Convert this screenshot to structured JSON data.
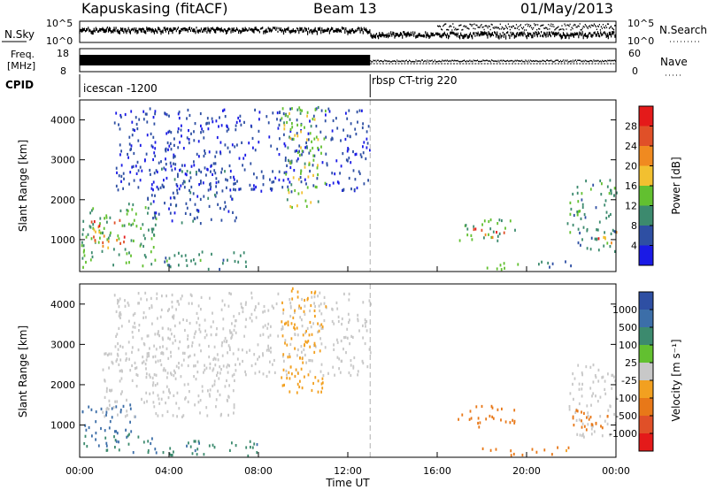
{
  "header": {
    "station": "Kapuskasing (fitACF)",
    "beam": "Beam 13",
    "date": "01/May/2013"
  },
  "summary_panels": {
    "nsky_label": "N.Sky",
    "nsky_ticks": [
      "10^5",
      "10^0"
    ],
    "nsearch_label": "N.Search",
    "nsearch_ticks": [
      "10^5",
      "10^0"
    ],
    "freq_label_line1": "Freq.",
    "freq_label_line2": "[MHz]",
    "freq_ticks": [
      "18",
      "8"
    ],
    "nave_label": "Nave",
    "nave_ticks": [
      "60",
      "0"
    ],
    "cpid_label": "CPID",
    "cpid_segments": [
      {
        "label": "icescan -1200",
        "start_hour": 0,
        "end_hour": 13
      },
      {
        "label": "rbsp CT-trig 220",
        "start_hour": 13,
        "end_hour": 24
      }
    ]
  },
  "colors": {
    "power_scale": [
      "#1a1ae6",
      "#2e4fa3",
      "#3c8a6e",
      "#62c030",
      "#f2c030",
      "#f08a20",
      "#e05028",
      "#e41a1a"
    ],
    "velocity_scale": [
      "#2e4fa3",
      "#3c6ea8",
      "#3c8a6e",
      "#62c030",
      "#c8c8c8",
      "#f2a020",
      "#e87818",
      "#e05028",
      "#e41a1a"
    ]
  },
  "chart_data": [
    {
      "type": "heatmap",
      "title": "Power",
      "ylabel": "Slant Range [km]",
      "xlabel": "",
      "xlim": [
        0,
        24
      ],
      "ylim": [
        200,
        4500
      ],
      "yticks": [
        "1000",
        "2000",
        "3000",
        "4000"
      ],
      "colorbar": {
        "label": "Power [dB]",
        "ticks": [
          "28",
          "24",
          "20",
          "16",
          "12",
          "8",
          "4"
        ]
      },
      "regions": [
        {
          "t0": 0.0,
          "t1": 3.4,
          "r0": 300,
          "r1": 1900,
          "value": 12
        },
        {
          "t0": 0.5,
          "t1": 2.0,
          "r0": 700,
          "r1": 1500,
          "value": 22
        },
        {
          "t0": 3.0,
          "t1": 7.0,
          "r0": 1400,
          "r1": 2800,
          "value": 6
        },
        {
          "t0": 1.5,
          "t1": 13.0,
          "r0": 2200,
          "r1": 4300,
          "value": 5
        },
        {
          "t0": 3.5,
          "t1": 7.5,
          "r0": 250,
          "r1": 700,
          "value": 10
        },
        {
          "t0": 9.0,
          "t1": 11.0,
          "r0": 1800,
          "r1": 4400,
          "value": 14
        },
        {
          "t0": 16.9,
          "t1": 19.5,
          "r0": 950,
          "r1": 1500,
          "value": 12
        },
        {
          "t0": 17.6,
          "t1": 19.2,
          "r0": 1050,
          "r1": 1300,
          "value": 24
        },
        {
          "t0": 18.0,
          "t1": 20.0,
          "r0": 250,
          "r1": 450,
          "value": 12
        },
        {
          "t0": 20.2,
          "t1": 22.0,
          "r0": 250,
          "r1": 450,
          "value": 8
        },
        {
          "t0": 21.8,
          "t1": 24.0,
          "r0": 700,
          "r1": 2500,
          "value": 10
        },
        {
          "t0": 23.0,
          "t1": 24.0,
          "r0": 900,
          "r1": 1300,
          "value": 22
        }
      ]
    },
    {
      "type": "heatmap",
      "title": "Velocity",
      "ylabel": "Slant Range [km]",
      "xlabel": "Time UT",
      "xlim": [
        0,
        24
      ],
      "ylim": [
        200,
        4500
      ],
      "xticks": [
        "00:00",
        "04:00",
        "08:00",
        "12:00",
        "16:00",
        "20:00",
        "00:00"
      ],
      "yticks": [
        "1000",
        "2000",
        "3000",
        "4000"
      ],
      "colorbar": {
        "label": "Velocity [m s⁻¹]",
        "ticks": [
          "1000",
          "500",
          "100",
          "25",
          "-25",
          "-100",
          "-500",
          "-1000"
        ]
      },
      "regions": [
        {
          "t0": 0.0,
          "t1": 2.5,
          "r0": 800,
          "r1": 1500,
          "value": 300
        },
        {
          "t0": 0.0,
          "t1": 3.4,
          "r0": 300,
          "r1": 800,
          "value": 100
        },
        {
          "t0": 1.0,
          "t1": 7.0,
          "r0": 1200,
          "r1": 2800,
          "value": 0
        },
        {
          "t0": 3.5,
          "t1": 8.0,
          "r0": 200,
          "r1": 600,
          "value": 80
        },
        {
          "t0": 1.5,
          "t1": 13.0,
          "r0": 2200,
          "r1": 4300,
          "value": 0
        },
        {
          "t0": 9.0,
          "t1": 11.0,
          "r0": 1800,
          "r1": 4400,
          "value": -60
        },
        {
          "t0": 16.9,
          "t1": 19.5,
          "r0": 950,
          "r1": 1500,
          "value": -200
        },
        {
          "t0": 18.0,
          "t1": 20.0,
          "r0": 250,
          "r1": 450,
          "value": -200
        },
        {
          "t0": 20.2,
          "t1": 22.0,
          "r0": 250,
          "r1": 450,
          "value": -120
        },
        {
          "t0": 21.8,
          "t1": 24.0,
          "r0": 700,
          "r1": 2500,
          "value": 0
        },
        {
          "t0": 22.0,
          "t1": 24.0,
          "r0": 800,
          "r1": 1400,
          "value": -300
        }
      ]
    }
  ]
}
